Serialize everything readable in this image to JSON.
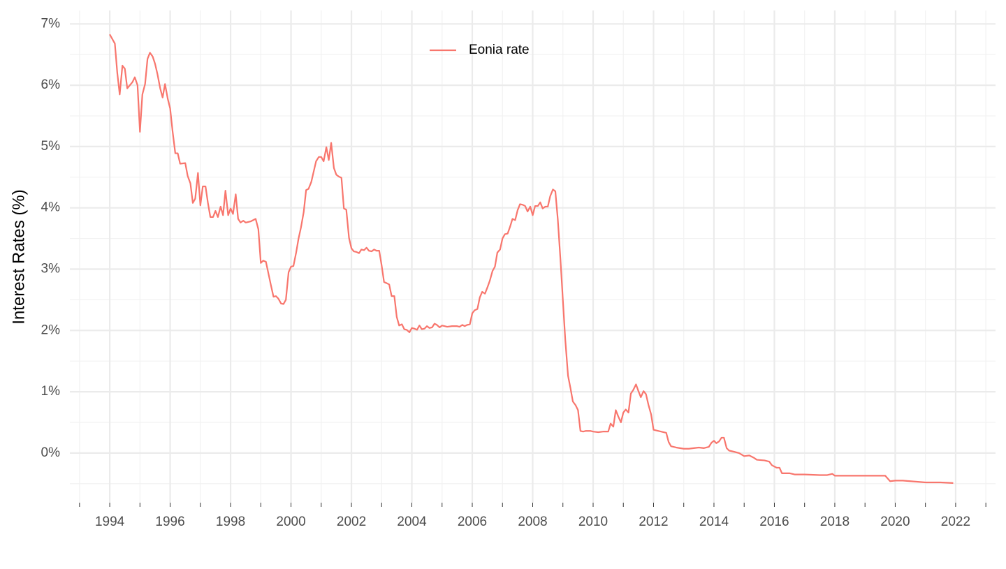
{
  "chart_data": {
    "type": "line",
    "y_label": "Interest Rates (%)",
    "legend": "top",
    "grid": true,
    "x": [
      1994,
      1994.17,
      1994.25,
      1994.33,
      1994.42,
      1994.5,
      1994.58,
      1994.75,
      1994.83,
      1994.92,
      1995,
      1995.08,
      1995.17,
      1995.25,
      1995.33,
      1995.42,
      1995.5,
      1995.58,
      1995.67,
      1995.75,
      1995.83,
      1995.92,
      1996,
      1996.08,
      1996.17,
      1996.25,
      1996.33,
      1996.5,
      1996.58,
      1996.67,
      1996.75,
      1996.83,
      1996.92,
      1997,
      1997.08,
      1997.17,
      1997.25,
      1997.33,
      1997.42,
      1997.5,
      1997.58,
      1997.67,
      1997.75,
      1997.83,
      1997.92,
      1998,
      1998.08,
      1998.17,
      1998.25,
      1998.33,
      1998.42,
      1998.5,
      1998.67,
      1998.83,
      1998.92,
      1999,
      1999.08,
      1999.17,
      1999.33,
      1999.42,
      1999.5,
      1999.58,
      1999.67,
      1999.75,
      1999.83,
      1999.92,
      2000,
      2000.08,
      2000.17,
      2000.25,
      2000.33,
      2000.42,
      2000.5,
      2000.58,
      2000.67,
      2000.75,
      2000.83,
      2000.92,
      2001,
      2001.08,
      2001.17,
      2001.25,
      2001.33,
      2001.42,
      2001.5,
      2001.58,
      2001.67,
      2001.75,
      2001.83,
      2001.92,
      2002,
      2002.08,
      2002.17,
      2002.25,
      2002.33,
      2002.42,
      2002.5,
      2002.58,
      2002.67,
      2002.75,
      2002.83,
      2002.92,
      2003,
      2003.08,
      2003.17,
      2003.25,
      2003.33,
      2003.42,
      2003.5,
      2003.58,
      2003.67,
      2003.75,
      2003.83,
      2003.92,
      2004,
      2004.08,
      2004.17,
      2004.25,
      2004.33,
      2004.42,
      2004.5,
      2004.58,
      2004.67,
      2004.75,
      2004.83,
      2004.92,
      2005,
      2005.17,
      2005.33,
      2005.5,
      2005.58,
      2005.67,
      2005.75,
      2005.83,
      2005.92,
      2006,
      2006.08,
      2006.17,
      2006.25,
      2006.33,
      2006.42,
      2006.5,
      2006.58,
      2006.67,
      2006.75,
      2006.83,
      2006.92,
      2007,
      2007.08,
      2007.17,
      2007.25,
      2007.33,
      2007.42,
      2007.5,
      2007.58,
      2007.67,
      2007.75,
      2007.83,
      2007.92,
      2008,
      2008.08,
      2008.17,
      2008.25,
      2008.33,
      2008.42,
      2008.5,
      2008.58,
      2008.67,
      2008.75,
      2008.83,
      2008.92,
      2009,
      2009.08,
      2009.17,
      2009.25,
      2009.33,
      2009.42,
      2009.5,
      2009.58,
      2009.67,
      2009.75,
      2009.83,
      2009.92,
      2010,
      2010.17,
      2010.33,
      2010.5,
      2010.58,
      2010.67,
      2010.75,
      2010.83,
      2010.92,
      2011,
      2011.08,
      2011.17,
      2011.25,
      2011.33,
      2011.42,
      2011.5,
      2011.58,
      2011.67,
      2011.75,
      2011.83,
      2011.92,
      2012,
      2012.08,
      2012.25,
      2012.42,
      2012.5,
      2012.58,
      2012.75,
      2013,
      2013.17,
      2013.33,
      2013.5,
      2013.67,
      2013.83,
      2013.92,
      2014,
      2014.08,
      2014.17,
      2014.25,
      2014.33,
      2014.42,
      2014.5,
      2014.67,
      2014.83,
      2015,
      2015.17,
      2015.33,
      2015.42,
      2015.67,
      2015.83,
      2015.92,
      2016.08,
      2016.17,
      2016.25,
      2016.5,
      2016.67,
      2017,
      2017.5,
      2017.75,
      2017.92,
      2018,
      2018.5,
      2019,
      2019.5,
      2019.67,
      2019.83,
      2020,
      2020.25,
      2020.5,
      2021,
      2021.5,
      2021.92
    ],
    "series": [
      {
        "name": "Eonia rate",
        "color": "#F8766D",
        "values": [
          6.83,
          6.68,
          6.2,
          5.85,
          6.32,
          6.27,
          5.95,
          6.05,
          6.13,
          6.0,
          5.24,
          5.85,
          6.02,
          6.43,
          6.53,
          6.47,
          6.35,
          6.18,
          5.95,
          5.8,
          6.02,
          5.78,
          5.62,
          5.25,
          4.89,
          4.89,
          4.72,
          4.73,
          4.52,
          4.4,
          4.08,
          4.15,
          4.57,
          4.04,
          4.35,
          4.35,
          4.08,
          3.85,
          3.85,
          3.95,
          3.85,
          4.02,
          3.88,
          4.28,
          3.88,
          3.99,
          3.9,
          4.22,
          3.82,
          3.76,
          3.79,
          3.76,
          3.78,
          3.82,
          3.65,
          3.1,
          3.14,
          3.12,
          2.75,
          2.55,
          2.56,
          2.52,
          2.44,
          2.43,
          2.5,
          2.95,
          3.04,
          3.05,
          3.27,
          3.5,
          3.68,
          3.93,
          4.29,
          4.31,
          4.42,
          4.59,
          4.76,
          4.83,
          4.83,
          4.76,
          4.99,
          4.78,
          5.06,
          4.65,
          4.54,
          4.51,
          4.49,
          3.99,
          3.97,
          3.51,
          3.34,
          3.29,
          3.28,
          3.26,
          3.32,
          3.31,
          3.35,
          3.3,
          3.29,
          3.32,
          3.3,
          3.3,
          3.06,
          2.79,
          2.77,
          2.75,
          2.56,
          2.56,
          2.22,
          2.08,
          2.1,
          2.02,
          2.01,
          1.97,
          2.04,
          2.03,
          2.01,
          2.08,
          2.02,
          2.03,
          2.07,
          2.04,
          2.05,
          2.11,
          2.09,
          2.05,
          2.08,
          2.06,
          2.07,
          2.07,
          2.06,
          2.09,
          2.07,
          2.09,
          2.1,
          2.28,
          2.33,
          2.35,
          2.54,
          2.63,
          2.6,
          2.7,
          2.81,
          2.97,
          3.04,
          3.27,
          3.32,
          3.5,
          3.57,
          3.58,
          3.69,
          3.82,
          3.8,
          3.96,
          4.06,
          4.05,
          4.03,
          3.94,
          4.02,
          3.88,
          4.03,
          4.03,
          4.09,
          3.99,
          4.02,
          4.02,
          4.19,
          4.3,
          4.27,
          3.82,
          3.15,
          2.49,
          1.84,
          1.26,
          1.06,
          0.84,
          0.78,
          0.7,
          0.36,
          0.35,
          0.36,
          0.36,
          0.36,
          0.35,
          0.34,
          0.35,
          0.35,
          0.48,
          0.43,
          0.7,
          0.6,
          0.5,
          0.66,
          0.71,
          0.66,
          0.97,
          1.03,
          1.12,
          1.01,
          0.91,
          1.01,
          0.96,
          0.79,
          0.63,
          0.38,
          0.37,
          0.35,
          0.33,
          0.18,
          0.11,
          0.09,
          0.07,
          0.07,
          0.08,
          0.09,
          0.08,
          0.1,
          0.17,
          0.2,
          0.16,
          0.19,
          0.25,
          0.25,
          0.08,
          0.04,
          0.02,
          0.0,
          -0.05,
          -0.04,
          -0.08,
          -0.11,
          -0.12,
          -0.14,
          -0.2,
          -0.24,
          -0.24,
          -0.33,
          -0.33,
          -0.35,
          -0.35,
          -0.36,
          -0.36,
          -0.34,
          -0.37,
          -0.37,
          -0.37,
          -0.37,
          -0.37,
          -0.46,
          -0.45,
          -0.45,
          -0.46,
          -0.48,
          -0.48,
          -0.49
        ]
      }
    ],
    "xlim": [
      1992.68,
      2023.32
    ],
    "xticks": [
      1994,
      1996,
      1998,
      2000,
      2002,
      2004,
      2006,
      2008,
      2010,
      2012,
      2014,
      2016,
      2018,
      2020,
      2022
    ],
    "ylim": [
      -0.81,
      7.22
    ],
    "yticks": [
      {
        "value": 0,
        "label": "0%"
      },
      {
        "value": 1,
        "label": "1%"
      },
      {
        "value": 2,
        "label": "2%"
      },
      {
        "value": 3,
        "label": "3%"
      },
      {
        "value": 4,
        "label": "4%"
      },
      {
        "value": 5,
        "label": "5%"
      },
      {
        "value": 6,
        "label": "6%"
      },
      {
        "value": 7,
        "label": "7%"
      }
    ]
  }
}
